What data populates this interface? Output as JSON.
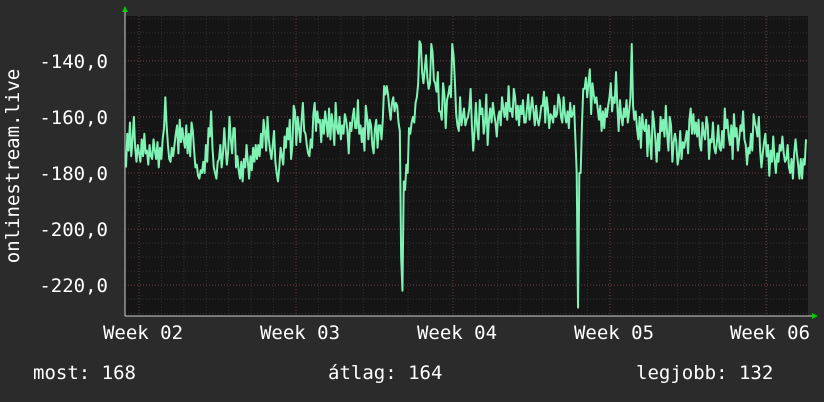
{
  "chart_data": {
    "type": "line",
    "ylabel": "onlinestream.live",
    "x_ticks": [
      "Week 02",
      "Week 03",
      "Week 04",
      "Week 05",
      "Week 06"
    ],
    "y_ticks": [
      "-140,0",
      "-160,0",
      "-180,0",
      "-200,0",
      "-220,0"
    ],
    "y_tick_values": [
      -140,
      -160,
      -180,
      -200,
      -220
    ],
    "ylim": [
      -231,
      -124
    ],
    "grid": true,
    "colors": {
      "background": "#2b2b2b",
      "plot_background": "#151515",
      "grid": "#3a3a3a",
      "line": "#7ff3b5",
      "arrow": "#00cc00"
    },
    "series": [
      {
        "values": [
          -178,
          -166,
          -172,
          -162,
          -174,
          -168,
          -160,
          -171,
          -176,
          -170,
          -173,
          -176,
          -168,
          -174,
          -166,
          -173,
          -172,
          -177,
          -170,
          -174,
          -175,
          -168,
          -172,
          -175,
          -169,
          -178,
          -171,
          -175,
          -168,
          -164,
          -153,
          -163,
          -170,
          -175,
          -176,
          -171,
          -174,
          -170,
          -166,
          -163,
          -173,
          -161,
          -169,
          -164,
          -168,
          -171,
          -163,
          -173,
          -166,
          -174,
          -162,
          -165,
          -172,
          -178,
          -177,
          -181,
          -182,
          -179,
          -180,
          -176,
          -180,
          -170,
          -176,
          -164,
          -167,
          -158,
          -171,
          -178,
          -180,
          -182,
          -176,
          -175,
          -170,
          -178,
          -173,
          -164,
          -171,
          -177,
          -172,
          -160,
          -168,
          -173,
          -164,
          -164,
          -178,
          -174,
          -179,
          -182,
          -176,
          -183,
          -175,
          -178,
          -170,
          -176,
          -182,
          -174,
          -179,
          -171,
          -176,
          -170,
          -175,
          -170,
          -174,
          -166,
          -171,
          -161,
          -165,
          -172,
          -160,
          -168,
          -172,
          -175,
          -170,
          -165,
          -176,
          -180,
          -183,
          -178,
          -171,
          -174,
          -177,
          -167,
          -171,
          -164,
          -168,
          -161,
          -175,
          -170,
          -156,
          -158,
          -170,
          -160,
          -164,
          -169,
          -161,
          -155,
          -165,
          -166,
          -170,
          -173,
          -174,
          -168,
          -171,
          -159,
          -155,
          -165,
          -158,
          -162,
          -161,
          -169,
          -161,
          -166,
          -158,
          -162,
          -167,
          -157,
          -168,
          -159,
          -163,
          -170,
          -155,
          -164,
          -166,
          -160,
          -168,
          -163,
          -166,
          -159,
          -161,
          -165,
          -173,
          -162,
          -165,
          -160,
          -157,
          -164,
          -164,
          -154,
          -166,
          -163,
          -169,
          -164,
          -172,
          -156,
          -160,
          -168,
          -161,
          -163,
          -170,
          -173,
          -164,
          -161,
          -171,
          -163,
          -163,
          -168,
          -161,
          -149,
          -152,
          -149,
          -152,
          -157,
          -161,
          -155,
          -153,
          -158,
          -155,
          -156,
          -162,
          -165,
          -210,
          -222,
          -183,
          -186,
          -177,
          -180,
          -164,
          -166,
          -162,
          -160,
          -162,
          -155,
          -153,
          -148,
          -133,
          -134,
          -144,
          -148,
          -143,
          -138,
          -146,
          -150,
          -148,
          -134,
          -137,
          -147,
          -148,
          -151,
          -144,
          -158,
          -158,
          -161,
          -148,
          -152,
          -164,
          -154,
          -152,
          -149,
          -153,
          -134,
          -138,
          -147,
          -159,
          -163,
          -165,
          -153,
          -163,
          -160,
          -157,
          -163,
          -161,
          -160,
          -157,
          -150,
          -163,
          -172,
          -165,
          -155,
          -163,
          -168,
          -154,
          -159,
          -157,
          -166,
          -162,
          -152,
          -170,
          -161,
          -157,
          -162,
          -155,
          -159,
          -162,
          -167,
          -160,
          -158,
          -163,
          -153,
          -157,
          -160,
          -155,
          -161,
          -149,
          -158,
          -157,
          -160,
          -150,
          -153,
          -161,
          -156,
          -163,
          -156,
          -159,
          -154,
          -162,
          -162,
          -157,
          -152,
          -161,
          -157,
          -153,
          -158,
          -163,
          -156,
          -161,
          -163,
          -160,
          -156,
          -156,
          -151,
          -162,
          -153,
          -157,
          -164,
          -159,
          -160,
          -162,
          -156,
          -160,
          -159,
          -152,
          -154,
          -160,
          -162,
          -153,
          -159,
          -162,
          -158,
          -164,
          -155,
          -160,
          -159,
          -156,
          -168,
          -180,
          -228,
          -180,
          -180,
          -163,
          -150,
          -150,
          -146,
          -153,
          -148,
          -143,
          -159,
          -148,
          -152,
          -155,
          -153,
          -157,
          -161,
          -156,
          -165,
          -158,
          -164,
          -157,
          -160,
          -156,
          -153,
          -148,
          -158,
          -153,
          -155,
          -144,
          -156,
          -165,
          -154,
          -160,
          -163,
          -157,
          -160,
          -154,
          -162,
          -158,
          -153,
          -134,
          -156,
          -161,
          -158,
          -164,
          -168,
          -160,
          -171,
          -159,
          -164,
          -165,
          -161,
          -174,
          -163,
          -169,
          -175,
          -158,
          -162,
          -168,
          -176,
          -166,
          -172,
          -160,
          -165,
          -161,
          -167,
          -156,
          -166,
          -172,
          -160,
          -163,
          -176,
          -169,
          -166,
          -169,
          -177,
          -174,
          -165,
          -175,
          -169,
          -171,
          -168,
          -165,
          -173,
          -161,
          -157,
          -166,
          -159,
          -166,
          -162,
          -167,
          -161,
          -170,
          -172,
          -162,
          -166,
          -168,
          -160,
          -163,
          -175,
          -168,
          -169,
          -162,
          -171,
          -173,
          -169,
          -163,
          -171,
          -172,
          -165,
          -171,
          -157,
          -164,
          -161,
          -167,
          -170,
          -163,
          -175,
          -159,
          -167,
          -164,
          -172,
          -168,
          -163,
          -165,
          -158,
          -168,
          -170,
          -177,
          -171,
          -173,
          -166,
          -172,
          -159,
          -162,
          -164,
          -167,
          -160,
          -172,
          -178,
          -173,
          -169,
          -166,
          -174,
          -170,
          -181,
          -172,
          -176,
          -167,
          -175,
          -180,
          -173,
          -176,
          -170,
          -172,
          -167,
          -173,
          -176,
          -175,
          -170,
          -178,
          -180,
          -175,
          -182,
          -173,
          -168,
          -173,
          -177,
          -182,
          -175,
          -182,
          -175,
          -177,
          -168
        ]
      }
    ]
  },
  "stats": {
    "current": "most: 168",
    "average": "átlag: 164",
    "best": "legjobb: 132"
  }
}
